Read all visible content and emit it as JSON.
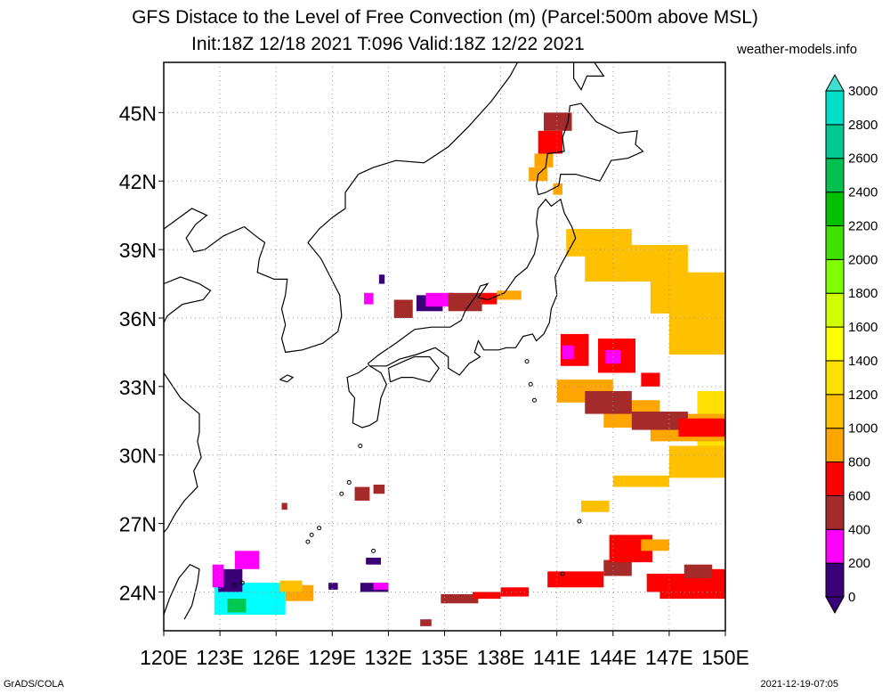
{
  "title": {
    "line1": "GFS Distace to the Level of Free Convection (m) (Parcel:500m above MSL)",
    "line2": "Init:18Z 12/18 2021 T:096 Valid:18Z 12/22 2021",
    "site": "weather-models.info"
  },
  "map": {
    "projection": "lat-lon",
    "lon_range": [
      120,
      150
    ],
    "lat_range": [
      22.3,
      47.2
    ],
    "lon_ticks": [
      "120E",
      "123E",
      "126E",
      "129E",
      "132E",
      "135E",
      "138E",
      "141E",
      "144E",
      "147E",
      "150E"
    ],
    "lat_ticks": [
      "24N",
      "27N",
      "30N",
      "33N",
      "36N",
      "39N",
      "42N",
      "45N"
    ],
    "lon_tick_values": [
      120,
      123,
      126,
      129,
      132,
      135,
      138,
      141,
      144,
      147,
      150
    ],
    "lat_tick_values": [
      24,
      27,
      30,
      33,
      36,
      39,
      42,
      45
    ],
    "grid": true
  },
  "colorbar": {
    "labels": [
      "0",
      "200",
      "400",
      "600",
      "800",
      "1000",
      "1200",
      "1400",
      "1600",
      "1800",
      "2000",
      "2200",
      "2400",
      "2600",
      "2800",
      "3000"
    ],
    "colors": [
      "#3a0078",
      "#ff00ff",
      "#a52a2a",
      "#ff0000",
      "#ffa500",
      "#ffc000",
      "#ffe000",
      "#ffff00",
      "#d0ff00",
      "#80ff00",
      "#40e000",
      "#00c000",
      "#00c050",
      "#00c890",
      "#00e0c8",
      "#00ffff"
    ],
    "top_color": "#40e0d0",
    "bottom_color": "#3a0078"
  },
  "footer": {
    "left": "GrADS/COLA",
    "right": "2021-12-19-07:05"
  }
}
